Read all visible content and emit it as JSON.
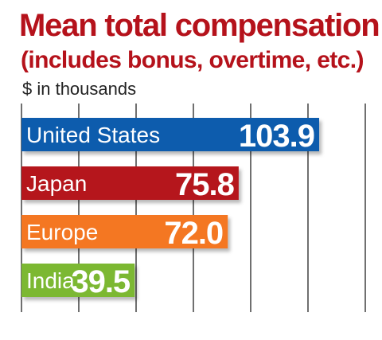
{
  "chart_data": {
    "type": "bar",
    "orientation": "horizontal",
    "title": "Mean total compensation",
    "subtitle": "(includes bonus, overtime, etc.)",
    "unit_label": "$ in thousands",
    "categories": [
      "United States",
      "Japan",
      "Europe",
      "India"
    ],
    "values": [
      103.9,
      75.8,
      72.0,
      39.5
    ],
    "value_labels": [
      "103.9",
      "75.8",
      "72.0",
      "39.5"
    ],
    "bar_colors": [
      "#0b5cad",
      "#b5121b",
      "#f47721",
      "#7cb832"
    ],
    "xlim": [
      0,
      120
    ],
    "grid": true,
    "legend": "none"
  }
}
